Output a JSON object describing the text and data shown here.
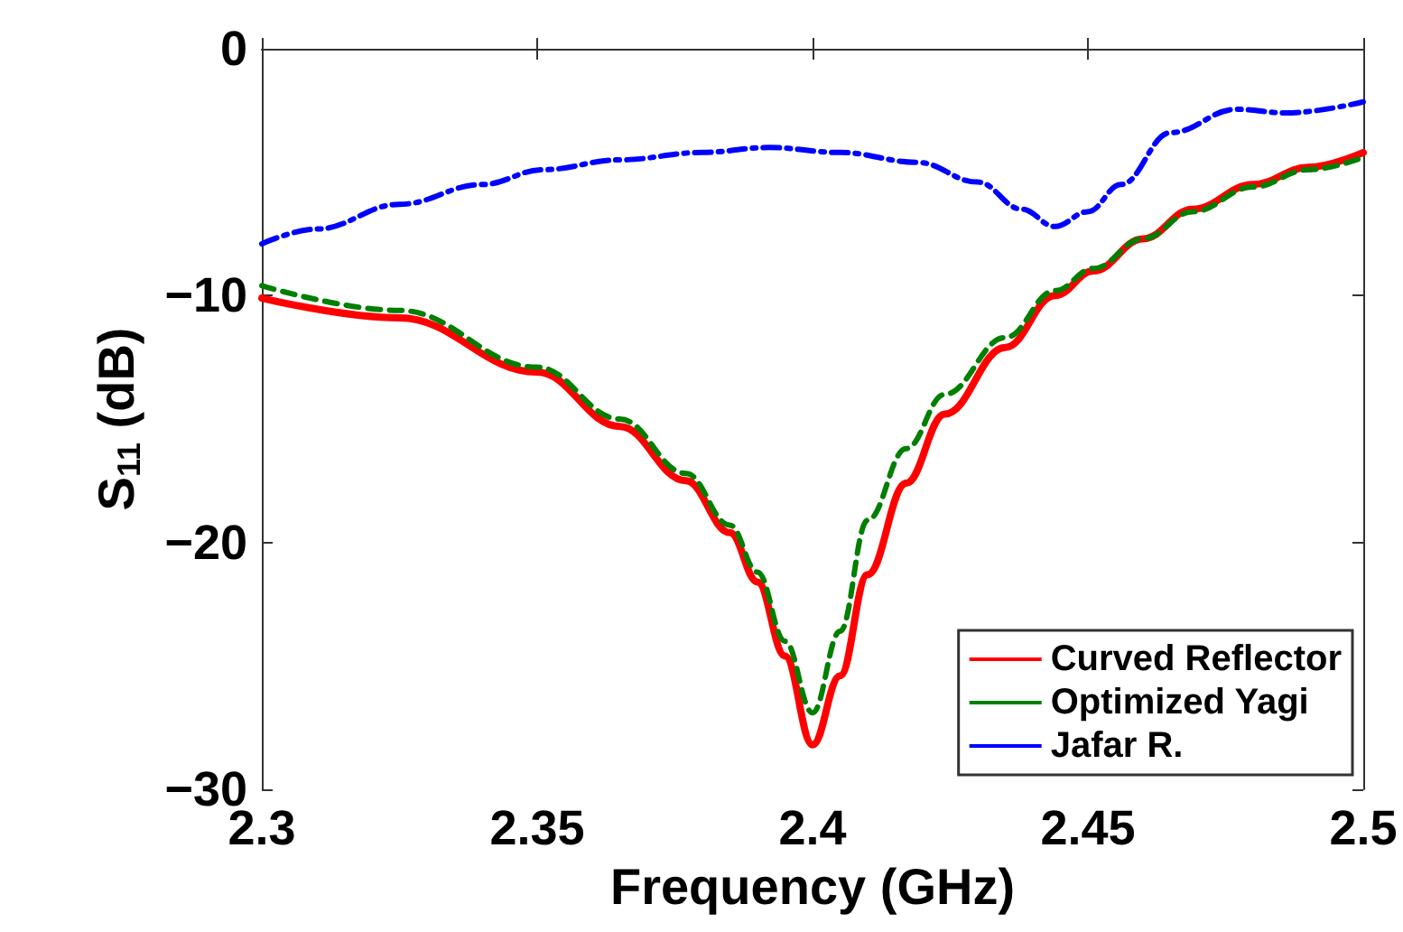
{
  "chart_data": {
    "type": "line",
    "xlabel": "Frequency (GHz)",
    "ylabel": "S$_{11}$ (dB)",
    "xlim": [
      2.3,
      2.5
    ],
    "xticks": [
      2.3,
      2.35,
      2.4,
      2.45,
      2.5
    ],
    "ylim": [
      -30,
      0
    ],
    "yticks": [
      -30,
      -20,
      -10,
      0
    ],
    "grid": false,
    "legend": "bottom right",
    "marker": "none",
    "series": [
      {
        "name": "Curved Reflector",
        "color": "#ff0000",
        "line_style": "solid",
        "x": [
          2.3,
          2.325,
          2.35,
          2.365,
          2.377,
          2.385,
          2.39,
          2.395,
          2.4,
          2.405,
          2.41,
          2.417,
          2.424,
          2.435,
          2.444,
          2.451,
          2.46,
          2.469,
          2.48,
          2.49,
          2.5
        ],
        "values": [
          -10.1,
          -10.9,
          -13.1,
          -15.3,
          -17.5,
          -19.6,
          -21.6,
          -24.6,
          -28.2,
          -25.4,
          -21.3,
          -17.6,
          -14.8,
          -12.1,
          -10.0,
          -9.0,
          -7.7,
          -6.5,
          -5.5,
          -4.8,
          -4.2
        ]
      },
      {
        "name": "Optimized Yagi",
        "color": "#007f00",
        "line_style": "dashed",
        "x": [
          2.3,
          2.325,
          2.35,
          2.365,
          2.377,
          2.385,
          2.39,
          2.395,
          2.4,
          2.405,
          2.41,
          2.417,
          2.424,
          2.435,
          2.444,
          2.451,
          2.46,
          2.469,
          2.48,
          2.49,
          2.5
        ],
        "values": [
          -9.6,
          -10.6,
          -12.9,
          -15.0,
          -17.2,
          -19.3,
          -21.2,
          -24.0,
          -26.9,
          -23.6,
          -19.1,
          -16.2,
          -14.0,
          -11.7,
          -9.8,
          -8.9,
          -7.7,
          -6.6,
          -5.6,
          -4.9,
          -4.4
        ]
      },
      {
        "name": "Jafar R.",
        "color": "#0000ff",
        "line_style": "dashdot",
        "x": [
          2.3,
          2.31,
          2.325,
          2.34,
          2.351,
          2.365,
          2.38,
          2.392,
          2.405,
          2.419,
          2.43,
          2.438,
          2.444,
          2.45,
          2.456,
          2.465,
          2.477,
          2.486,
          2.5
        ],
        "values": [
          -7.9,
          -7.3,
          -6.3,
          -5.5,
          -4.9,
          -4.5,
          -4.2,
          -4.0,
          -4.2,
          -4.6,
          -5.4,
          -6.5,
          -7.2,
          -6.6,
          -5.5,
          -3.4,
          -2.45,
          -2.6,
          -2.15
        ]
      }
    ]
  }
}
